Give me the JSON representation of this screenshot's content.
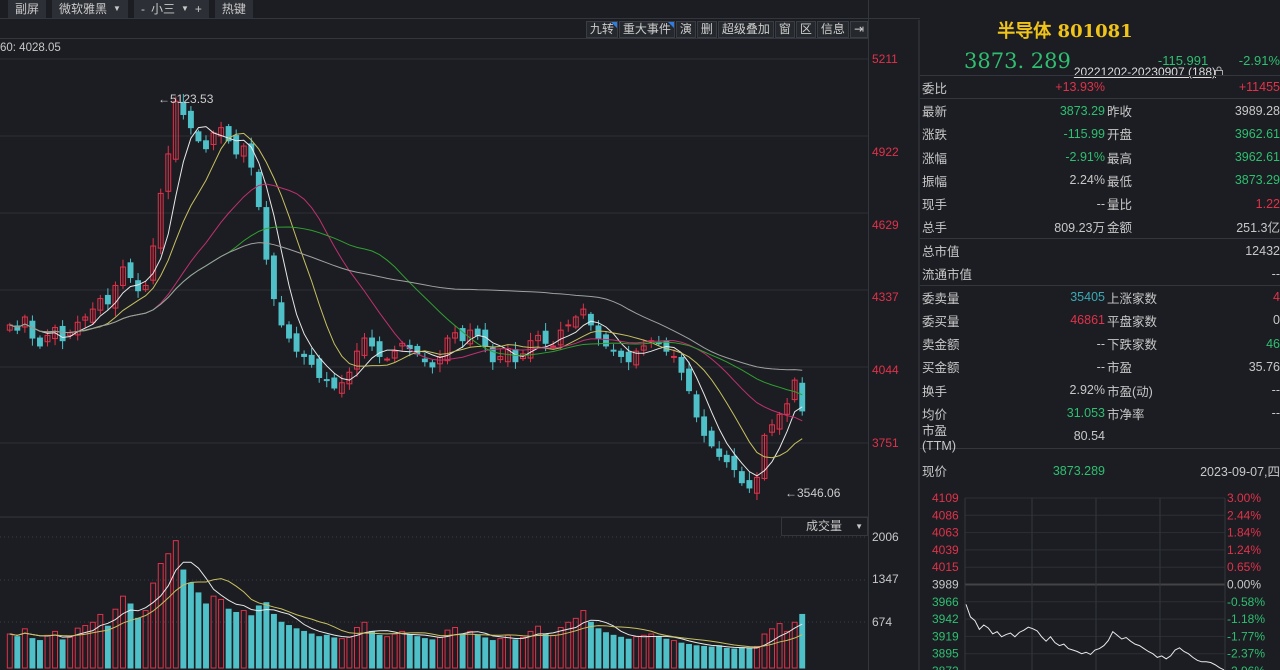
{
  "toolbar": {
    "items": [
      "副屏",
      "微软雅黑",
      "-",
      "小三",
      "+",
      "热键"
    ]
  },
  "chart_tools": [
    "九转",
    "重大事件",
    "演",
    "删",
    "超级叠加",
    "窗",
    "区",
    "信息"
  ],
  "ma_label": "60: 4028.05",
  "range_label": "20221202-20230907 (188)",
  "annotations": {
    "high": "5123.53",
    "low": "3546.06"
  },
  "price_axis": [
    "5211",
    "4922",
    "4629",
    "4337",
    "4044",
    "3751"
  ],
  "volume_axis": [
    "2006",
    "1347",
    "674"
  ],
  "volume_selector": "成交量",
  "colors": {
    "up": "#e0324a",
    "down": "#4fc0c8",
    "ma5": "#e8e8e8",
    "ma10": "#c8c060",
    "ma20": "#c03070",
    "ma30": "#30a030",
    "ma60": "#a0a0a0"
  },
  "chart_data": {
    "type": "candlestick",
    "closes": [
      4200,
      4180,
      4230,
      4150,
      4120,
      4160,
      4190,
      4140,
      4170,
      4210,
      4230,
      4260,
      4300,
      4280,
      4350,
      4420,
      4380,
      4330,
      4350,
      4500,
      4700,
      4850,
      5050,
      5000,
      4950,
      4900,
      4870,
      4930,
      4950,
      4900,
      4850,
      4880,
      4800,
      4650,
      4450,
      4300,
      4200,
      4150,
      4100,
      4080,
      4050,
      4000,
      3990,
      3960,
      3980,
      4020,
      4100,
      4150,
      4120,
      4080,
      4070,
      4100,
      4130,
      4110,
      4090,
      4060,
      4040,
      4080,
      4150,
      4170,
      4140,
      4180,
      4160,
      4120,
      4060,
      4080,
      4110,
      4060,
      4090,
      4140,
      4160,
      4130,
      4120,
      4180,
      4200,
      4230,
      4260,
      4200,
      4150,
      4120,
      4100,
      4080,
      4060,
      4100,
      4120,
      4140,
      4130,
      4100,
      4080,
      4020,
      3950,
      3850,
      3780,
      3740,
      3700,
      3680,
      3650,
      3600,
      3580,
      3620,
      3780,
      3820,
      3860,
      3900,
      3990,
      3873
    ],
    "volumes": [
      520,
      480,
      600,
      450,
      420,
      500,
      560,
      430,
      470,
      610,
      650,
      700,
      820,
      640,
      900,
      1100,
      980,
      760,
      880,
      1300,
      1600,
      1750,
      1950,
      1500,
      1300,
      1150,
      980,
      1100,
      1050,
      900,
      850,
      880,
      800,
      950,
      1000,
      820,
      700,
      650,
      600,
      560,
      520,
      480,
      500,
      460,
      450,
      470,
      620,
      700,
      560,
      500,
      480,
      520,
      560,
      510,
      480,
      450,
      430,
      470,
      580,
      620,
      520,
      560,
      500,
      460,
      420,
      450,
      500,
      430,
      470,
      560,
      640,
      520,
      500,
      620,
      700,
      760,
      880,
      700,
      600,
      540,
      500,
      470,
      440,
      480,
      500,
      520,
      480,
      440,
      420,
      380,
      360,
      340,
      330,
      320,
      340,
      300,
      290,
      310,
      300,
      330,
      520,
      600,
      680,
      560,
      700,
      820
    ],
    "ylim": [
      3500,
      5300
    ],
    "vol_max": 2006
  },
  "side": {
    "title": "半导体 801081",
    "price": "3873. 289",
    "change": "-115.991",
    "pct": "-2.91%",
    "weibi_label": "委比",
    "weibi": "+13.93%",
    "weicha": "+11455",
    "rows": [
      {
        "l": "最新",
        "v": "3873.29",
        "vc": "g",
        "l2": "昨收",
        "v2": "3989.28",
        "v2c": "w"
      },
      {
        "l": "涨跌",
        "v": "-115.99",
        "vc": "g",
        "l2": "开盘",
        "v2": "3962.61",
        "v2c": "g"
      },
      {
        "l": "涨幅",
        "v": "-2.91%",
        "vc": "g",
        "l2": "最高",
        "v2": "3962.61",
        "v2c": "g"
      },
      {
        "l": "振幅",
        "v": "2.24%",
        "vc": "w",
        "l2": "最低",
        "v2": "3873.29",
        "v2c": "g"
      },
      {
        "l": "现手",
        "v": "--",
        "vc": "w",
        "l2": "量比",
        "v2": "1.22",
        "v2c": "r"
      },
      {
        "l": "总手",
        "v": "809.23万",
        "vc": "w",
        "l2": "金额",
        "v2": "251.3亿",
        "v2c": "w"
      }
    ],
    "mcap_label": "总市值",
    "mcap": "12432",
    "float_label": "流通市值",
    "float": "--",
    "rows2": [
      {
        "l": "委卖量",
        "v": "35405",
        "vc": "c",
        "l2": "上涨家数",
        "v2": "4",
        "v2c": "r"
      },
      {
        "l": "委买量",
        "v": "46861",
        "vc": "r",
        "l2": "平盘家数",
        "v2": "0",
        "v2c": "w"
      },
      {
        "l": "卖金额",
        "v": "--",
        "vc": "w",
        "l2": "下跌家数",
        "v2": "46",
        "v2c": "g"
      },
      {
        "l": "买金额",
        "v": "--",
        "vc": "w",
        "l2": "市盈",
        "v2": "35.76",
        "v2c": "w"
      },
      {
        "l": "换手",
        "v": "2.92%",
        "vc": "w",
        "l2": "市盈(动)",
        "v2": "--",
        "v2c": "w"
      },
      {
        "l": "均价",
        "v": "31.053",
        "vc": "g",
        "l2": "市净率",
        "v2": "--",
        "v2c": "w"
      },
      {
        "l": "市盈(TTM)",
        "v": "80.54",
        "vc": "w",
        "l2": "",
        "v2": "",
        "v2c": "w"
      }
    ],
    "now_label": "现价",
    "now": "3873.289",
    "date": "2023-09-07,四"
  },
  "intraday": {
    "left_axis": [
      "4109",
      "4086",
      "4063",
      "4039",
      "4015",
      "3989",
      "3966",
      "3942",
      "3919",
      "3895",
      "3872"
    ],
    "right_axis": [
      "3.00%",
      "2.44%",
      "1.84%",
      "1.24%",
      "0.65%",
      "0.00%",
      "-0.58%",
      "-1.18%",
      "-1.77%",
      "-2.37%",
      "-2.96%"
    ],
    "prices": [
      3962,
      3945,
      3940,
      3928,
      3934,
      3930,
      3922,
      3925,
      3918,
      3921,
      3923,
      3918,
      3924,
      3927,
      3931,
      3929,
      3926,
      3918,
      3912,
      3918,
      3910,
      3906,
      3908,
      3902,
      3900,
      3898,
      3895,
      3897,
      3894,
      3900,
      3902,
      3906,
      3913,
      3925,
      3920,
      3915,
      3917,
      3912,
      3908,
      3906,
      3902,
      3898,
      3895,
      3890,
      3892,
      3888,
      3892,
      3900,
      3903,
      3898,
      3895,
      3890,
      3886,
      3884,
      3884,
      3883,
      3880,
      3876,
      3873
    ]
  }
}
